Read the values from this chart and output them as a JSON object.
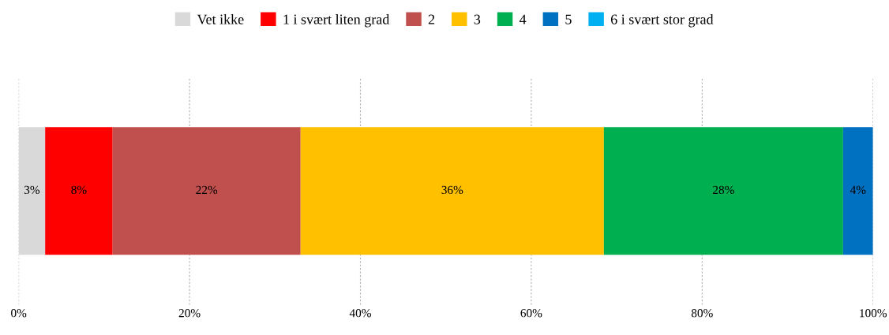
{
  "chart_data": {
    "type": "bar",
    "orientation": "horizontal",
    "stacked": true,
    "categories": [
      null
    ],
    "series": [
      {
        "name": "Vet ikke",
        "color": "#d9d9d9",
        "values": [
          3.1
        ],
        "value_labels": [
          "3%"
        ]
      },
      {
        "name": "1 i svært liten grad",
        "color": "#ff0000",
        "values": [
          7.9
        ],
        "value_labels": [
          "8%"
        ]
      },
      {
        "name": "2",
        "color": "#c0504d",
        "values": [
          22
        ],
        "value_labels": [
          "22%"
        ]
      },
      {
        "name": "3",
        "color": "#ffc000",
        "values": [
          35.5
        ],
        "value_labels": [
          "36%"
        ]
      },
      {
        "name": "4",
        "color": "#00b050",
        "values": [
          28
        ],
        "value_labels": [
          "28%"
        ]
      },
      {
        "name": "5",
        "color": "#0070c0",
        "values": [
          3.5
        ],
        "value_labels": [
          "4%"
        ]
      },
      {
        "name": "6 i svært stor grad",
        "color": "#00b0f0",
        "values": [
          0
        ],
        "value_labels": [
          null
        ]
      }
    ],
    "xlim": [
      0,
      100
    ],
    "xticks": [
      {
        "value": 0,
        "label": "0%"
      },
      {
        "value": 20,
        "label": "20%"
      },
      {
        "value": 40,
        "label": "40%"
      },
      {
        "value": 60,
        "label": "60%"
      },
      {
        "value": 80,
        "label": "80%"
      },
      {
        "value": 100,
        "label": "100%"
      }
    ],
    "grid": "x",
    "legend": "top",
    "tick_labels": "x"
  }
}
